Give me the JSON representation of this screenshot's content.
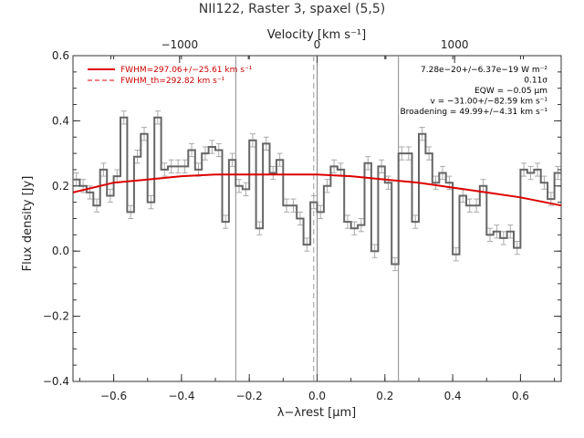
{
  "chart_data": {
    "type": "line",
    "title": "NII122, Raster 3, spaxel (5,5)",
    "xlabel": "λ−λrest [μm]",
    "ylabel": "Flux density [Jy]",
    "top_xlabel": "Velocity [km s⁻¹]",
    "xlim": [
      -0.72,
      0.72
    ],
    "ylim": [
      -0.4,
      0.6
    ],
    "top_xlim": [
      -1775,
      1775
    ],
    "x_ticks": [
      "−0.6",
      "−0.4",
      "−0.2",
      "0.0",
      "0.2",
      "0.4",
      "0.6"
    ],
    "x_tick_values": [
      -0.6,
      -0.4,
      -0.2,
      0.0,
      0.2,
      0.4,
      0.6
    ],
    "y_ticks": [
      "−0.4",
      "−0.2",
      "0.0",
      "0.2",
      "0.4",
      "0.6"
    ],
    "y_tick_values": [
      -0.4,
      -0.2,
      0.0,
      0.2,
      0.4,
      0.6
    ],
    "top_ticks": [
      "−1000",
      "0",
      "1000"
    ],
    "top_tick_values": [
      -1000,
      0,
      1000
    ],
    "vlines_solid": [
      -0.24,
      0.0,
      0.24
    ],
    "vline_dashed": -0.01,
    "series": [
      {
        "name": "FWHM=297.06+/−25.61 km s⁻¹",
        "style": "smooth",
        "color": "#dd0000",
        "x": [
          -0.72,
          -0.6,
          -0.5,
          -0.4,
          -0.3,
          -0.2,
          -0.1,
          0.0,
          0.1,
          0.2,
          0.3,
          0.4,
          0.5,
          0.6,
          0.72
        ],
        "y": [
          0.18,
          0.21,
          0.22,
          0.23,
          0.235,
          0.235,
          0.235,
          0.235,
          0.23,
          0.22,
          0.21,
          0.195,
          0.18,
          0.165,
          0.14
        ]
      },
      {
        "name": "FWHM_th=292.82 km s⁻¹",
        "style": "dashed",
        "color": "#dd0000",
        "x": [],
        "y": []
      },
      {
        "name": "",
        "style": "step",
        "color": "#666666",
        "x": [
          -0.71,
          -0.69,
          -0.67,
          -0.65,
          -0.63,
          -0.61,
          -0.59,
          -0.57,
          -0.55,
          -0.53,
          -0.51,
          -0.49,
          -0.47,
          -0.45,
          -0.43,
          -0.41,
          -0.39,
          -0.37,
          -0.35,
          -0.33,
          -0.31,
          -0.29,
          -0.27,
          -0.25,
          -0.23,
          -0.21,
          -0.19,
          -0.17,
          -0.15,
          -0.13,
          -0.11,
          -0.09,
          -0.07,
          -0.05,
          -0.03,
          -0.01,
          0.01,
          0.03,
          0.05,
          0.07,
          0.09,
          0.11,
          0.13,
          0.15,
          0.17,
          0.19,
          0.21,
          0.23,
          0.25,
          0.27,
          0.29,
          0.31,
          0.33,
          0.35,
          0.37,
          0.39,
          0.41,
          0.43,
          0.45,
          0.47,
          0.49,
          0.51,
          0.53,
          0.55,
          0.57,
          0.59,
          0.61,
          0.63,
          0.65,
          0.67,
          0.69,
          0.71
        ],
        "y": [
          0.22,
          0.2,
          0.18,
          0.14,
          0.25,
          0.17,
          0.23,
          0.41,
          0.12,
          0.29,
          0.36,
          0.15,
          0.41,
          0.25,
          0.26,
          0.26,
          0.26,
          0.31,
          0.25,
          0.3,
          0.32,
          0.31,
          0.09,
          0.28,
          0.2,
          0.19,
          0.34,
          0.07,
          0.33,
          0.24,
          0.28,
          0.14,
          0.14,
          0.1,
          0.02,
          0.15,
          0.12,
          0.2,
          0.26,
          0.25,
          0.09,
          0.07,
          0.08,
          0.27,
          0.0,
          0.26,
          0.21,
          -0.04,
          0.3,
          0.3,
          0.09,
          0.36,
          0.3,
          0.21,
          0.24,
          0.21,
          -0.01,
          0.17,
          0.14,
          0.14,
          0.2,
          0.05,
          0.06,
          0.04,
          0.06,
          0.01,
          0.25,
          0.24,
          0.25,
          0.21,
          0.16,
          0.24
        ],
        "err": 0.02
      }
    ],
    "legend": [
      "FWHM=297.06+/−25.61 km s⁻¹",
      "FWHM_th=292.82 km s⁻¹"
    ],
    "legend_position": "top-left",
    "annotations": [
      "7.28e−20+/−6.37e−19 W m⁻²",
      "0.11σ",
      "EQW = −0.05 μm",
      "v = −31.00+/−82.59 km s⁻¹",
      "Broadening = 49.99+/−4.31 km s⁻¹"
    ],
    "grid": false
  }
}
